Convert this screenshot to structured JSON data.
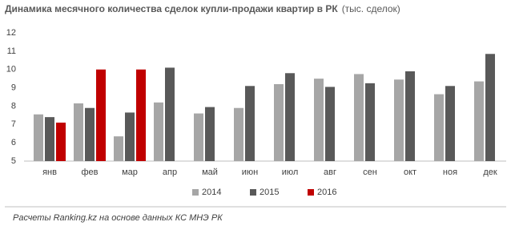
{
  "chart_data": {
    "type": "bar",
    "title": "Динамика месячного количества сделок купли-продажи квартир в РК",
    "subtitle": "(тыс. сделок)",
    "source": "Расчеты Ranking.kz на основе данных  КС МНЭ РК",
    "categories": [
      "янв",
      "фев",
      "мар",
      "апр",
      "май",
      "июн",
      "июл",
      "авг",
      "сен",
      "окт",
      "ноя",
      "дек"
    ],
    "series": [
      {
        "name": "2014",
        "color": "#a6a6a6",
        "values": [
          7.55,
          8.15,
          6.35,
          8.2,
          7.6,
          7.9,
          9.2,
          9.5,
          9.75,
          9.45,
          8.65,
          9.35
        ]
      },
      {
        "name": "2015",
        "color": "#595959",
        "values": [
          7.4,
          7.9,
          7.65,
          10.1,
          7.95,
          9.1,
          9.8,
          9.05,
          9.25,
          9.9,
          9.1,
          10.85
        ]
      },
      {
        "name": "2016",
        "color": "#c00000",
        "values": [
          7.1,
          10.0,
          10.0,
          null,
          null,
          null,
          null,
          null,
          null,
          null,
          null,
          null
        ]
      }
    ],
    "ylim": [
      5,
      12
    ],
    "yticks": [
      5,
      6,
      7,
      8,
      9,
      10,
      11,
      12
    ],
    "grid": false,
    "legend": "bottom"
  }
}
